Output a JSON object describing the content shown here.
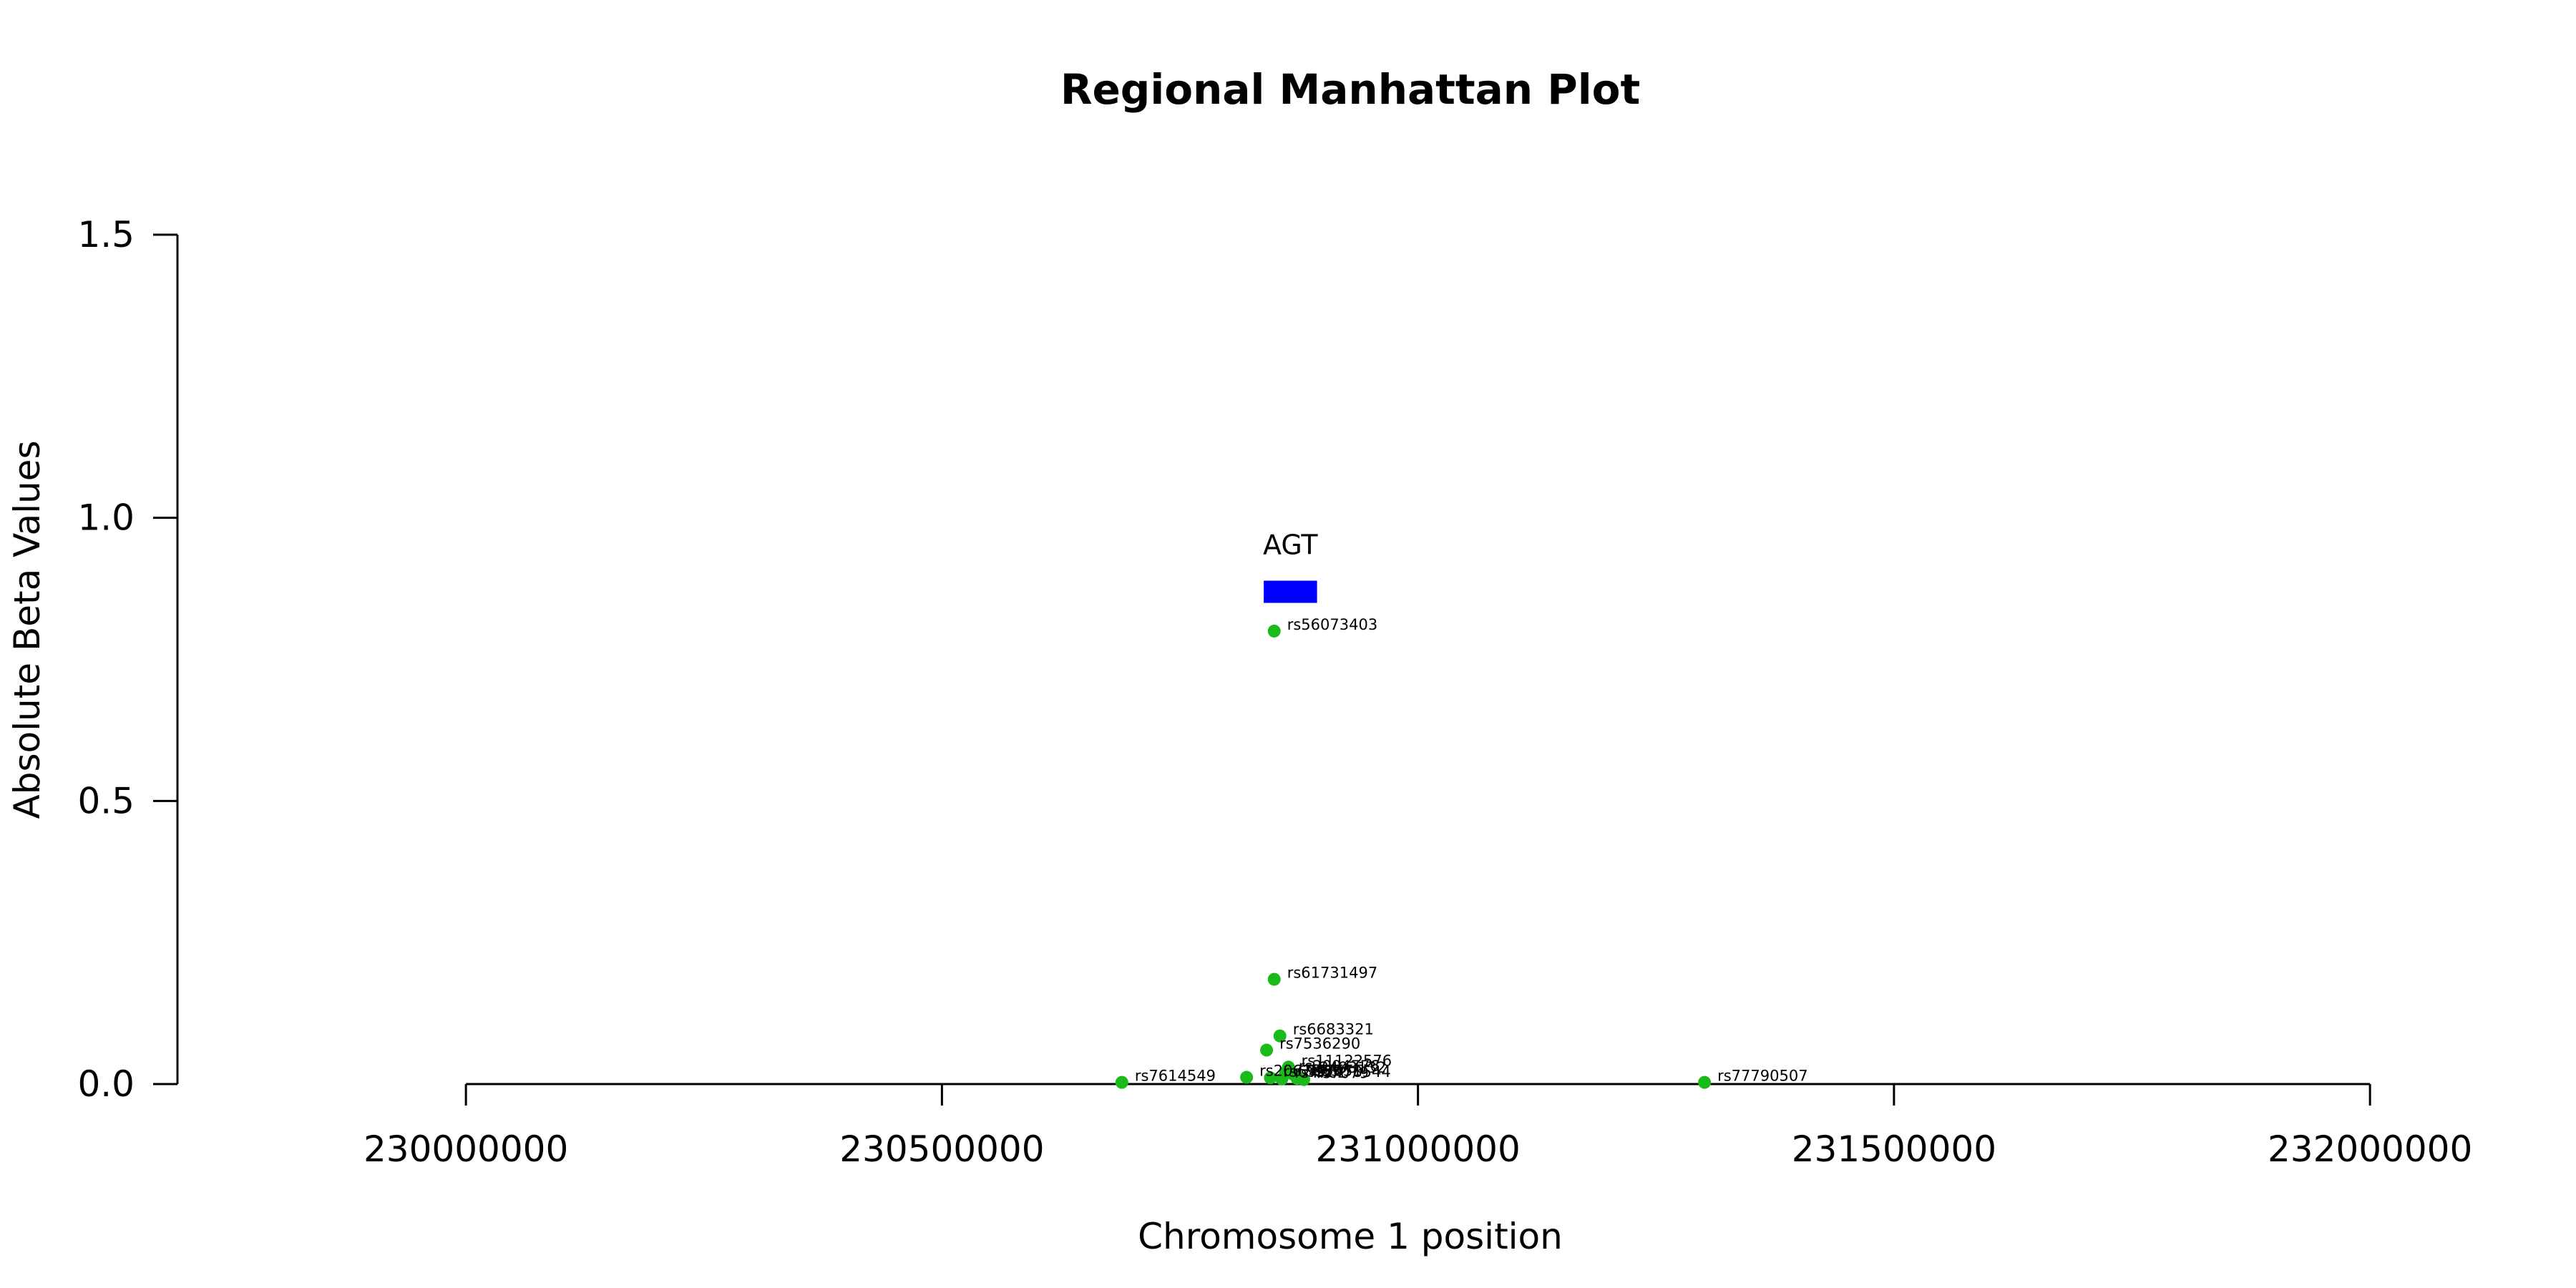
{
  "chart_data": {
    "type": "scatter",
    "title": "Regional Manhattan Plot",
    "xlabel": "Chromosome 1 position",
    "ylabel": "Absolute Beta Values",
    "xlim": [
      229697000,
      232160000
    ],
    "ylim": [
      0,
      1.5
    ],
    "xticks": [
      230000000,
      230500000,
      231000000,
      231500000,
      232000000
    ],
    "xtick_labels": [
      "230000000",
      "230500000",
      "231000000",
      "231500000",
      "232000000"
    ],
    "yticks": [
      0,
      0.5,
      1,
      1.5
    ],
    "ytick_labels": [
      "0.0",
      "0.5",
      "1.0",
      "1.5"
    ],
    "grid": false,
    "point_color": "#1aba1a",
    "gene_color": "#0000ff",
    "genes": [
      {
        "name": "AGT",
        "start": 230838000,
        "end": 230894000,
        "y": 0.87
      }
    ],
    "points": [
      {
        "label": "rs56073403",
        "x": 230849000,
        "y": 0.8
      },
      {
        "label": "rs61731497",
        "x": 230849000,
        "y": 0.185
      },
      {
        "label": "rs6683321",
        "x": 230855000,
        "y": 0.085
      },
      {
        "label": "rs7536290",
        "x": 230841000,
        "y": 0.06
      },
      {
        "label": "rs11122576",
        "x": 230864000,
        "y": 0.03
      },
      {
        "label": "rs2493132",
        "x": 230868000,
        "y": 0.018
      },
      {
        "label": "rs2004776",
        "x": 230861000,
        "y": 0.02
      },
      {
        "label": "rs5051",
        "x": 230873000,
        "y": 0.012
      },
      {
        "label": "rs2478544",
        "x": 230873000,
        "y": 0.01
      },
      {
        "label": "rs7079",
        "x": 230880000,
        "y": 0.008
      },
      {
        "label": "rs4762",
        "x": 230857000,
        "y": 0.009
      },
      {
        "label": "rs699",
        "x": 230845000,
        "y": 0.011
      },
      {
        "label": "rs2067853",
        "x": 230820000,
        "y": 0.012
      },
      {
        "label": "rs7614549",
        "x": 230689000,
        "y": 0.003
      },
      {
        "label": "rs77790507",
        "x": 231301000,
        "y": 0.003
      }
    ]
  }
}
